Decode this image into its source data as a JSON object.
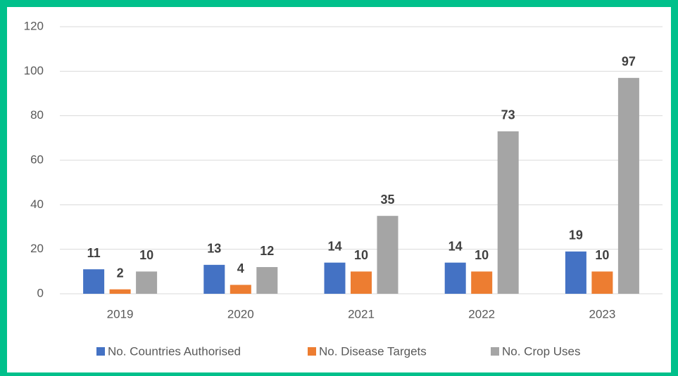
{
  "chart_data": {
    "type": "bar",
    "categories": [
      "2019",
      "2020",
      "2021",
      "2022",
      "2023"
    ],
    "series": [
      {
        "name": "No. Countries Authorised",
        "color": "#4472c4",
        "values": [
          11,
          13,
          14,
          14,
          19
        ]
      },
      {
        "name": "No. Disease Targets",
        "color": "#ed7d31",
        "values": [
          2,
          4,
          10,
          10,
          10
        ]
      },
      {
        "name": "No. Crop Uses",
        "color": "#a5a5a5",
        "values": [
          10,
          12,
          35,
          73,
          97
        ]
      }
    ],
    "ylim": [
      0,
      120
    ],
    "yticks": [
      0,
      20,
      40,
      60,
      80,
      100,
      120
    ],
    "grid": true,
    "legend": "bottom"
  }
}
